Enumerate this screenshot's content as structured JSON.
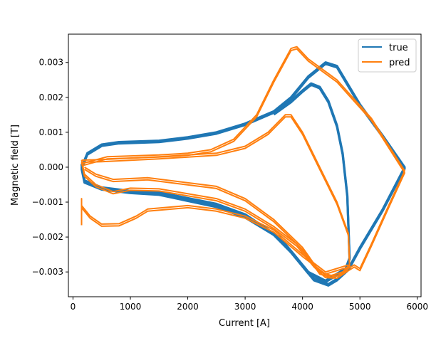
{
  "chart_data": {
    "type": "line",
    "title": "",
    "xlabel": "Current [A]",
    "ylabel": "Magnetic field [T]",
    "xlim": [
      -80,
      6065
    ],
    "ylim": [
      -0.00371,
      0.00381
    ],
    "grid": false,
    "legend_position": "top-right",
    "legend": [
      {
        "name": "true",
        "color": "#1f77b4"
      },
      {
        "name": "pred",
        "color": "#ff7f0e"
      }
    ],
    "xticks": [
      0,
      1000,
      2000,
      3000,
      4000,
      5000,
      6000
    ],
    "xtick_labels": [
      "0",
      "1000",
      "2000",
      "3000",
      "4000",
      "5000",
      "6000"
    ],
    "yticks": [
      0.003,
      0.002,
      0.001,
      0,
      -0.001,
      -0.002,
      -0.003
    ],
    "ytick_labels": [
      "0.003",
      "0.002",
      "0.001",
      "0.000",
      "−0.001",
      "−0.002",
      "−0.003"
    ],
    "series": [
      {
        "name": "true",
        "color": "#1f77b4",
        "x": [
          150,
          250,
          500,
          800,
          1500,
          2000,
          2500,
          3000,
          3500,
          3800,
          4100,
          4400,
          4600,
          5000,
          5400,
          5780,
          5400,
          5000,
          4800,
          4600,
          4450,
          4200,
          3900,
          3600,
          3000,
          2500,
          1500,
          1000,
          500,
          200,
          150
        ],
        "y": [
          0,
          0.0004,
          0.00065,
          0.00072,
          0.00076,
          0.00086,
          0.001,
          0.00125,
          0.0016,
          0.002,
          0.0026,
          0.003,
          0.0029,
          0.0018,
          0.0009,
          0,
          -0.0012,
          -0.0023,
          -0.0029,
          -0.0032,
          -0.00335,
          -0.0032,
          -0.0026,
          -0.002,
          -0.0014,
          -0.0011,
          -0.00075,
          -0.0007,
          -0.0006,
          -0.0004,
          0
        ]
      },
      {
        "name": "true",
        "color": "#1f77b4",
        "x": [
          3500,
          3800,
          4000,
          4150,
          4300,
          4450,
          4600,
          4700,
          4780,
          4820,
          4750,
          4550,
          4400,
          4100,
          3800,
          3500,
          3000,
          2500,
          1500,
          1000,
          500,
          200,
          150
        ],
        "y": [
          0.00155,
          0.0019,
          0.0022,
          0.0024,
          0.0023,
          0.0019,
          0.0012,
          0.0004,
          -0.0008,
          -0.0026,
          -0.0029,
          -0.0031,
          -0.00325,
          -0.003,
          -0.0024,
          -0.0019,
          -0.00135,
          -0.00105,
          -0.00072,
          -0.00068,
          -0.00058,
          -0.00038,
          0.0001
        ]
      },
      {
        "name": "pred",
        "color": "#ff7f0e",
        "x": [
          150,
          600,
          1500,
          2000,
          2400,
          2800,
          3200,
          3500,
          3800,
          3900,
          4100,
          4600,
          5200,
          5780,
          5500,
          5200,
          5000,
          4900,
          4800,
          4600,
          4400,
          4200,
          3900,
          3500,
          3000,
          2500,
          1500,
          1000,
          700,
          400,
          200,
          150
        ],
        "y": [
          0.0001,
          0.0003,
          0.00035,
          0.0004,
          0.0005,
          0.0008,
          0.0015,
          0.0025,
          0.0034,
          0.00345,
          0.0031,
          0.0025,
          0.0014,
          -0.0001,
          -0.0011,
          -0.0022,
          -0.0029,
          -0.0028,
          -0.0029,
          -0.00312,
          -0.0031,
          -0.0028,
          -0.0022,
          -0.0017,
          -0.0012,
          -0.0009,
          -0.00062,
          -0.0006,
          -0.0007,
          -0.0005,
          -0.0002,
          0.0002
        ]
      },
      {
        "name": "pred",
        "color": "#ff7f0e",
        "x": [
          150,
          500,
          1500,
          2500,
          3000,
          3400,
          3700,
          3800,
          4000,
          4300,
          4600,
          4800,
          4820,
          4700,
          4500,
          4300,
          4000,
          3500,
          3000,
          2500,
          1300,
          700,
          400,
          200
        ],
        "y": [
          0.0002,
          0.00022,
          0.0003,
          0.0004,
          0.0006,
          0.001,
          0.0015,
          0.0015,
          0.001,
          0,
          -0.001,
          -0.0019,
          -0.0028,
          -0.003,
          -0.0031,
          -0.003,
          -0.0023,
          -0.0015,
          -0.0009,
          -0.00055,
          -0.0003,
          -0.00035,
          -0.0002,
          0
        ]
      },
      {
        "name": "pred",
        "color": "#ff7f0e",
        "x": [
          150,
          150,
          150,
          300,
          500,
          800,
          1100,
          1300,
          2000,
          2500,
          3000,
          3500,
          4000,
          4400,
          4800
        ],
        "y": [
          -0.0016,
          -0.0009,
          -0.0011,
          -0.0014,
          -0.00163,
          -0.00162,
          -0.0014,
          -0.0012,
          -0.0011,
          -0.0012,
          -0.0014,
          -0.0018,
          -0.0025,
          -0.003,
          -0.0028
        ]
      }
    ]
  }
}
